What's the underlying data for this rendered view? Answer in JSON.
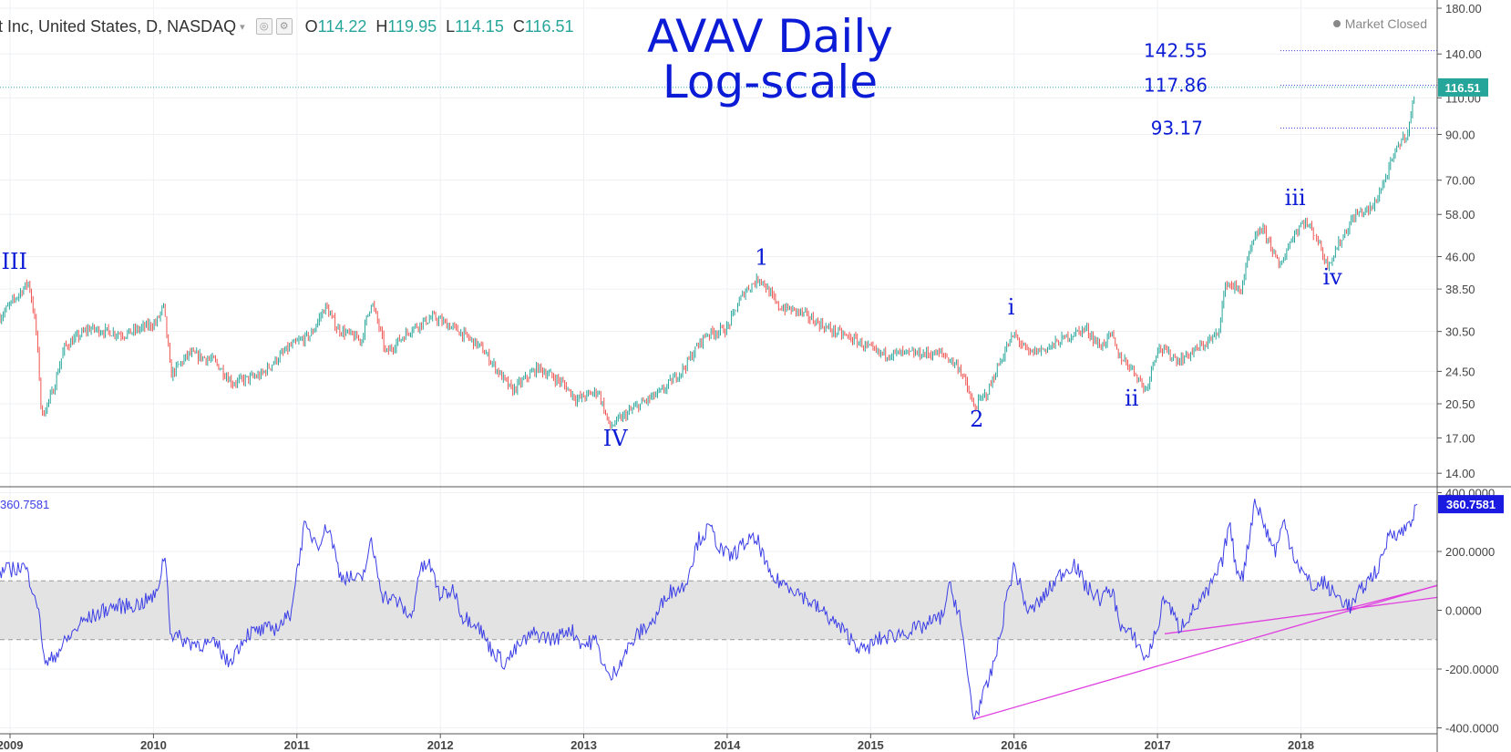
{
  "header": {
    "symbol": "t Inc, United States, D, NASDAQ",
    "caret": "▾",
    "open_label": "O",
    "open": "114.22",
    "high_label": "H",
    "high": "119.95",
    "low_label": "L",
    "low": "114.15",
    "close_label": "C",
    "close": "116.51"
  },
  "market_status": "Market Closed",
  "title_line1": "AVAV Daily",
  "title_line2": "Log-scale",
  "price_badge": "116.51",
  "osc_badge": "360.7581",
  "osc_label": "360.7581",
  "colors": {
    "up": "#26a69a",
    "down": "#ef5350",
    "osc_line": "#3b3ee6",
    "title": "#0b1bd6",
    "trendline": "#e040e0",
    "badge_price": "#26a69a",
    "badge_osc": "#1a1ae0",
    "band": "#e3e3e3"
  },
  "chart_data": [
    {
      "type": "line",
      "subtype": "candlestick",
      "scale": "log",
      "ylim": [
        13,
        180
      ],
      "y_ticks": [
        "180.00",
        "140.00",
        "110.00",
        "90.00",
        "70.00",
        "58.00",
        "46.00",
        "38.50",
        "30.50",
        "24.50",
        "20.50",
        "17.00",
        "14.00"
      ],
      "y_tick_values": [
        180,
        140,
        110,
        90,
        70,
        58,
        46,
        38.5,
        30.5,
        24.5,
        20.5,
        17,
        14
      ],
      "x_ticks": [
        "2009",
        "2010",
        "2011",
        "2012",
        "2013",
        "2014",
        "2015",
        "2016",
        "2017",
        "2018"
      ],
      "x_tick_values": [
        2009.0,
        2010.0,
        2011.0,
        2012.0,
        2013.0,
        2014.0,
        2015.0,
        2016.0,
        2017.0,
        2018.0
      ],
      "xlim": [
        2008.93,
        2018.95
      ],
      "grid": true,
      "price_path": [
        [
          2008.93,
          33
        ],
        [
          2009.02,
          36
        ],
        [
          2009.13,
          40
        ],
        [
          2009.18,
          31
        ],
        [
          2009.22,
          19
        ],
        [
          2009.3,
          22
        ],
        [
          2009.38,
          28
        ],
        [
          2009.55,
          31
        ],
        [
          2009.8,
          30
        ],
        [
          2010.02,
          32
        ],
        [
          2010.07,
          35
        ],
        [
          2010.12,
          24
        ],
        [
          2010.25,
          27
        ],
        [
          2010.42,
          26
        ],
        [
          2010.55,
          23
        ],
        [
          2010.75,
          24
        ],
        [
          2010.95,
          28
        ],
        [
          2011.1,
          30
        ],
        [
          2011.2,
          35
        ],
        [
          2011.28,
          31
        ],
        [
          2011.45,
          29
        ],
        [
          2011.52,
          36
        ],
        [
          2011.62,
          27
        ],
        [
          2011.8,
          31
        ],
        [
          2011.95,
          33
        ],
        [
          2012.1,
          31
        ],
        [
          2012.28,
          28
        ],
        [
          2012.42,
          24
        ],
        [
          2012.5,
          22
        ],
        [
          2012.68,
          25
        ],
        [
          2012.85,
          23
        ],
        [
          2012.95,
          21
        ],
        [
          2013.1,
          22
        ],
        [
          2013.18,
          18
        ],
        [
          2013.35,
          20
        ],
        [
          2013.55,
          22
        ],
        [
          2013.7,
          25
        ],
        [
          2013.85,
          30
        ],
        [
          2014.0,
          31
        ],
        [
          2014.12,
          38
        ],
        [
          2014.23,
          41
        ],
        [
          2014.35,
          35
        ],
        [
          2014.5,
          34
        ],
        [
          2014.7,
          31
        ],
        [
          2014.9,
          29
        ],
        [
          2015.05,
          27
        ],
        [
          2015.25,
          27
        ],
        [
          2015.5,
          27
        ],
        [
          2015.62,
          25
        ],
        [
          2015.72,
          20
        ],
        [
          2015.82,
          22
        ],
        [
          2015.95,
          28
        ],
        [
          2016.0,
          30
        ],
        [
          2016.1,
          27
        ],
        [
          2016.25,
          28
        ],
        [
          2016.4,
          30
        ],
        [
          2016.5,
          31
        ],
        [
          2016.6,
          28
        ],
        [
          2016.68,
          30
        ],
        [
          2016.72,
          27
        ],
        [
          2016.82,
          25
        ],
        [
          2016.92,
          22
        ],
        [
          2017.0,
          28
        ],
        [
          2017.15,
          26
        ],
        [
          2017.3,
          28
        ],
        [
          2017.42,
          30
        ],
        [
          2017.48,
          40
        ],
        [
          2017.58,
          38
        ],
        [
          2017.65,
          48
        ],
        [
          2017.72,
          54
        ],
        [
          2017.78,
          50
        ],
        [
          2017.85,
          43
        ],
        [
          2017.88,
          46
        ],
        [
          2017.95,
          52
        ],
        [
          2018.02,
          56
        ],
        [
          2018.1,
          52
        ],
        [
          2018.18,
          44
        ],
        [
          2018.22,
          46
        ],
        [
          2018.3,
          52
        ],
        [
          2018.38,
          58
        ],
        [
          2018.5,
          60
        ],
        [
          2018.6,
          72
        ],
        [
          2018.68,
          85
        ],
        [
          2018.72,
          89
        ],
        [
          2018.75,
          92
        ],
        [
          2018.8,
          116.51
        ]
      ],
      "levels": [
        {
          "label": "142.55",
          "value": 142.55
        },
        {
          "label": "117.86",
          "value": 117.86
        },
        {
          "label": "93.17",
          "value": 93.17
        }
      ],
      "current_value": 116.51,
      "wave_labels": [
        {
          "text": "III",
          "x": 2009.03,
          "y": 43
        },
        {
          "text": "IV",
          "x": 2013.22,
          "y": 16.3
        },
        {
          "text": "1",
          "x": 2014.24,
          "y": 44
        },
        {
          "text": "2",
          "x": 2015.74,
          "y": 18.1
        },
        {
          "text": "i",
          "x": 2015.98,
          "y": 33.5
        },
        {
          "text": "ii",
          "x": 2016.82,
          "y": 20.3
        },
        {
          "text": "iii",
          "x": 2017.96,
          "y": 61
        },
        {
          "text": "iv",
          "x": 2018.22,
          "y": 39.5
        }
      ]
    },
    {
      "type": "line",
      "ylim": [
        -420,
        420
      ],
      "y_ticks": [
        "400.0000",
        "200.0000",
        "0.0000",
        "-200.0000",
        "-400.0000"
      ],
      "y_tick_values": [
        400,
        200,
        0,
        -200,
        -400
      ],
      "band": [
        -100,
        100
      ],
      "current_value": 360.7581,
      "series_path": [
        [
          2008.93,
          130
        ],
        [
          2009.1,
          150
        ],
        [
          2009.18,
          50
        ],
        [
          2009.25,
          -190
        ],
        [
          2009.4,
          -100
        ],
        [
          2009.5,
          -40
        ],
        [
          2009.7,
          10
        ],
        [
          2009.9,
          20
        ],
        [
          2010.02,
          50
        ],
        [
          2010.08,
          200
        ],
        [
          2010.12,
          -80
        ],
        [
          2010.25,
          -110
        ],
        [
          2010.45,
          -120
        ],
        [
          2010.52,
          -180
        ],
        [
          2010.65,
          -80
        ],
        [
          2010.85,
          -60
        ],
        [
          2010.95,
          -20
        ],
        [
          2011.0,
          130
        ],
        [
          2011.05,
          280
        ],
        [
          2011.15,
          230
        ],
        [
          2011.22,
          290
        ],
        [
          2011.3,
          120
        ],
        [
          2011.45,
          100
        ],
        [
          2011.52,
          230
        ],
        [
          2011.6,
          50
        ],
        [
          2011.7,
          30
        ],
        [
          2011.8,
          -30
        ],
        [
          2011.85,
          130
        ],
        [
          2011.92,
          160
        ],
        [
          2012.0,
          50
        ],
        [
          2012.1,
          70
        ],
        [
          2012.15,
          -20
        ],
        [
          2012.25,
          -40
        ],
        [
          2012.35,
          -130
        ],
        [
          2012.45,
          -180
        ],
        [
          2012.55,
          -120
        ],
        [
          2012.65,
          -80
        ],
        [
          2012.8,
          -100
        ],
        [
          2012.9,
          -60
        ],
        [
          2013.0,
          -120
        ],
        [
          2013.08,
          -100
        ],
        [
          2013.18,
          -240
        ],
        [
          2013.28,
          -150
        ],
        [
          2013.38,
          -80
        ],
        [
          2013.5,
          -30
        ],
        [
          2013.58,
          60
        ],
        [
          2013.7,
          80
        ],
        [
          2013.8,
          240
        ],
        [
          2013.88,
          280
        ],
        [
          2013.95,
          210
        ],
        [
          2014.02,
          180
        ],
        [
          2014.15,
          240
        ],
        [
          2014.22,
          230
        ],
        [
          2014.3,
          110
        ],
        [
          2014.45,
          80
        ],
        [
          2014.55,
          40
        ],
        [
          2014.7,
          -20
        ],
        [
          2014.85,
          -90
        ],
        [
          2014.95,
          -140
        ],
        [
          2015.05,
          -100
        ],
        [
          2015.2,
          -80
        ],
        [
          2015.35,
          -60
        ],
        [
          2015.5,
          -20
        ],
        [
          2015.55,
          80
        ],
        [
          2015.62,
          -10
        ],
        [
          2015.65,
          -130
        ],
        [
          2015.72,
          -370
        ],
        [
          2015.82,
          -250
        ],
        [
          2015.9,
          -100
        ],
        [
          2015.95,
          50
        ],
        [
          2016.0,
          150
        ],
        [
          2016.1,
          -10
        ],
        [
          2016.2,
          40
        ],
        [
          2016.32,
          120
        ],
        [
          2016.42,
          160
        ],
        [
          2016.5,
          80
        ],
        [
          2016.6,
          40
        ],
        [
          2016.68,
          70
        ],
        [
          2016.75,
          -60
        ],
        [
          2016.85,
          -100
        ],
        [
          2016.92,
          -170
        ],
        [
          2017.0,
          -60
        ],
        [
          2017.05,
          50
        ],
        [
          2017.15,
          -60
        ],
        [
          2017.25,
          0
        ],
        [
          2017.35,
          60
        ],
        [
          2017.45,
          160
        ],
        [
          2017.5,
          300
        ],
        [
          2017.55,
          140
        ],
        [
          2017.6,
          120
        ],
        [
          2017.68,
          380
        ],
        [
          2017.75,
          280
        ],
        [
          2017.82,
          200
        ],
        [
          2017.88,
          300
        ],
        [
          2017.95,
          190
        ],
        [
          2018.02,
          120
        ],
        [
          2018.1,
          70
        ],
        [
          2018.15,
          100
        ],
        [
          2018.22,
          60
        ],
        [
          2018.3,
          30
        ],
        [
          2018.35,
          10
        ],
        [
          2018.42,
          70
        ],
        [
          2018.5,
          120
        ],
        [
          2018.55,
          150
        ],
        [
          2018.62,
          270
        ],
        [
          2018.7,
          260
        ],
        [
          2018.78,
          320
        ],
        [
          2018.82,
          360.7581
        ]
      ],
      "trendlines": [
        [
          [
            2015.72,
            -370
          ],
          [
            2019.2,
            120
          ]
        ],
        [
          [
            2017.05,
            -80
          ],
          [
            2019.2,
            60
          ]
        ],
        [
          [
            2018.28,
            0
          ],
          [
            2019.2,
            115
          ]
        ]
      ]
    }
  ]
}
